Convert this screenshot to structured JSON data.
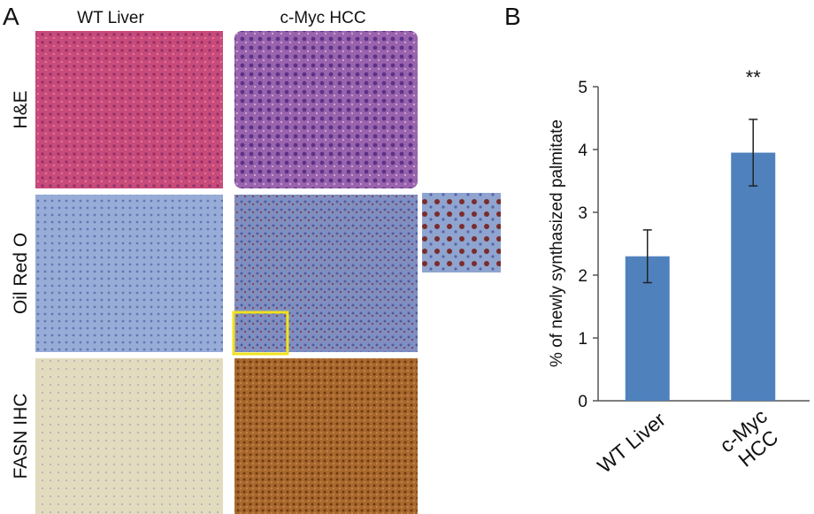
{
  "panel_a": {
    "label": "A",
    "columns": [
      "WT Liver",
      "c-Myc HCC"
    ],
    "rows": [
      "H&E",
      "Oil Red O",
      "FASN IHC"
    ]
  },
  "chart_data": {
    "type": "bar",
    "panel_label": "B",
    "y_label": "% of newly synthasized palmitate",
    "categories": [
      "WT Liver",
      "c-Myc HCC"
    ],
    "values": [
      2.3,
      3.95
    ],
    "errors": [
      0.42,
      0.53
    ],
    "annotations": [
      null,
      "**"
    ],
    "color": "#4f81bd",
    "ylim": [
      0,
      5
    ],
    "yticks": [
      0,
      1,
      2,
      3,
      4,
      5
    ]
  }
}
